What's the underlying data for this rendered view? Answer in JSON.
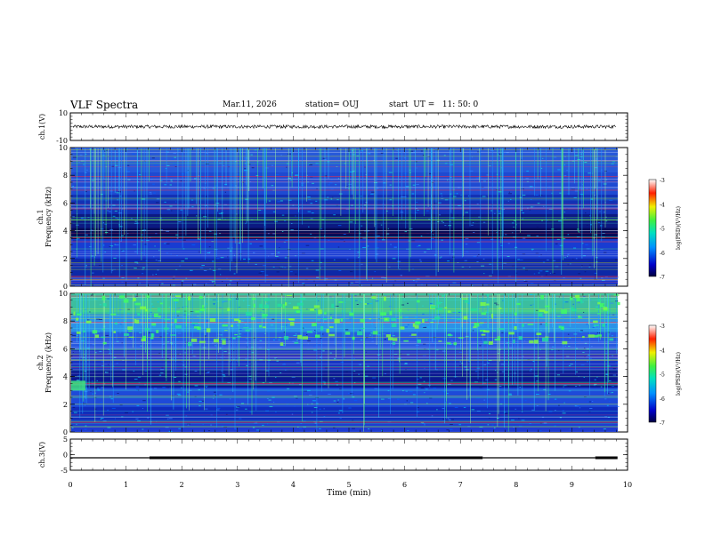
{
  "header": {
    "title": "VLF Spectra",
    "date": "Mar.11, 2026",
    "station": "station= OUJ",
    "start": "start  UT =   11: 50: 0"
  },
  "chart_data": [
    {
      "type": "line",
      "panel": "ch1-waveform",
      "ylabel": "ch.1(V)",
      "ylim": [
        -10,
        10
      ],
      "yticks": [
        "10",
        "-10"
      ],
      "xlim": [
        0,
        10
      ],
      "signal_amplitude_v": [
        -1.2,
        1.2
      ]
    },
    {
      "type": "heatmap",
      "panel": "ch1-spectrogram",
      "ylabel_line1": "ch.1",
      "ylabel_line2": "Frequency (kHz)",
      "ylim": [
        0,
        10
      ],
      "yticks": [
        "0",
        "2",
        "4",
        "6",
        "8",
        "10"
      ],
      "xlim": [
        0,
        10
      ],
      "colorbar": {
        "label": "log(PSD)(V²/Hz)",
        "range": [
          -7,
          -3
        ],
        "ticks": [
          "-3",
          "-4",
          "-5",
          "-6",
          "-7"
        ]
      }
    },
    {
      "type": "heatmap",
      "panel": "ch2-spectrogram",
      "ylabel_line1": "ch.2",
      "ylabel_line2": "Frequency (kHz)",
      "ylim": [
        0,
        10
      ],
      "yticks": [
        "0",
        "2",
        "4",
        "6",
        "8",
        "10"
      ],
      "xlim": [
        0,
        10
      ],
      "colorbar": {
        "label": "log(PSD)(V²/Hz)",
        "range": [
          -7,
          -3
        ],
        "ticks": [
          "-3",
          "-4",
          "-5",
          "-6",
          "-7"
        ]
      }
    },
    {
      "type": "line",
      "panel": "ch3-waveform",
      "ylabel": "ch.3(V)",
      "ylim": [
        -5,
        5
      ],
      "yticks": [
        "5",
        "0",
        "-5"
      ],
      "xlim": [
        0,
        10
      ],
      "xlabel": "Time (min)",
      "xticks": [
        "0",
        "1",
        "2",
        "3",
        "4",
        "5",
        "6",
        "7",
        "8",
        "9",
        "10"
      ],
      "segments": [
        {
          "x": [
            0,
            1.42
          ],
          "y": -1.0,
          "thick": false
        },
        {
          "x": [
            1.42,
            7.4
          ],
          "y": -1.0,
          "thick": true
        },
        {
          "x": [
            7.4,
            9.42
          ],
          "y": -1.0,
          "thick": false
        },
        {
          "x": [
            9.42,
            9.82
          ],
          "y": -1.0,
          "thick": true
        }
      ]
    }
  ]
}
